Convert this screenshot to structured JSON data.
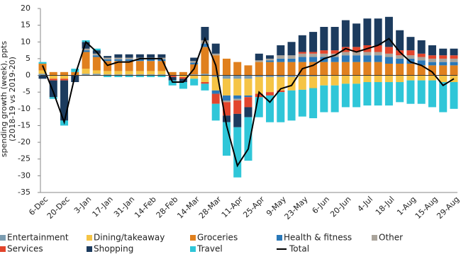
{
  "chart_data": {
    "type": "stacked-bar-line",
    "y_label": [
      "spending growth (week), ppts",
      "(2018-19 vs 2019-20)"
    ],
    "categories": [
      "6-Dec",
      null,
      "20-Dec",
      null,
      "3-Jan",
      null,
      "17-Jan",
      null,
      "31-Jan",
      null,
      "14-Feb",
      null,
      "28-Feb",
      null,
      "14-Mar",
      null,
      "28-Mar",
      null,
      "11-Apr",
      null,
      "25-Apr",
      null,
      "9-May",
      null,
      "23-May",
      null,
      "6-Jun",
      null,
      "20-Jun",
      null,
      "4-Jul",
      null,
      "18-Jul",
      null,
      "1-Aug",
      null,
      "15-Aug",
      null,
      "29-Aug"
    ],
    "ylim": [
      -35,
      20
    ],
    "yticks": [
      -35,
      -30,
      -25,
      -20,
      -15,
      -10,
      -5,
      0,
      5,
      10,
      15,
      20
    ],
    "series": [
      {
        "name": "Entertainment",
        "color": "#7b9cb0",
        "values": [
          0.5,
          0,
          0,
          0,
          0.5,
          0.5,
          0.3,
          0.3,
          0.3,
          0.3,
          0.3,
          0.3,
          0,
          0,
          0.3,
          0.5,
          -0.5,
          -1,
          -1,
          -1,
          -0.5,
          -0.5,
          -0.5,
          -0.5,
          -0.3,
          -0.3,
          0,
          0,
          0,
          0,
          0,
          0,
          0,
          0,
          0,
          0,
          0,
          0,
          0
        ]
      },
      {
        "name": "Dining/takeaway",
        "color": "#f5c445",
        "values": [
          1,
          -1,
          -1,
          0,
          1.5,
          1,
          1,
          1,
          1,
          1,
          1,
          1,
          0,
          -0.5,
          -1,
          -2,
          -4,
          -5,
          -5,
          -5,
          -5,
          -4.5,
          -4,
          -4,
          -4,
          -3.5,
          -3,
          -3,
          -2.5,
          -2.5,
          -2,
          -2,
          -2,
          -2,
          -1.5,
          -1.5,
          -1.5,
          -2,
          -2
        ]
      },
      {
        "name": "Groceries",
        "color": "#e0801e",
        "values": [
          2,
          1,
          1,
          1,
          5,
          4,
          3,
          3,
          3,
          3,
          3,
          3,
          1,
          1,
          3,
          8,
          6,
          5,
          4,
          3,
          4,
          4,
          4,
          4,
          4,
          4,
          4,
          4,
          4,
          4,
          4,
          4,
          3.5,
          3.5,
          3.5,
          3,
          3,
          3,
          3
        ]
      },
      {
        "name": "Health & fitness",
        "color": "#2a78b8",
        "values": [
          0,
          0,
          0,
          0,
          0.5,
          0.5,
          0.5,
          0.5,
          0.5,
          0.5,
          0.5,
          0.5,
          0,
          0,
          0.5,
          1,
          -1,
          -1.5,
          -1,
          -0.5,
          0,
          0.5,
          1,
          1,
          1.5,
          1.5,
          1.5,
          1.5,
          2,
          2,
          2,
          2,
          2,
          1.5,
          1.5,
          1.5,
          1,
          1,
          1
        ]
      },
      {
        "name": "Other",
        "color": "#aaa49b",
        "values": [
          0,
          0,
          0,
          0,
          0.5,
          0.5,
          0.5,
          0.5,
          0.5,
          0.5,
          0.5,
          0.5,
          0,
          0,
          0.5,
          1,
          0.5,
          -0.5,
          -0.5,
          0,
          0.5,
          0.5,
          1,
          1,
          1,
          1,
          1,
          1,
          1,
          1,
          1,
          1,
          1,
          1,
          1,
          1,
          1,
          1,
          1
        ]
      },
      {
        "name": "Services",
        "color": "#e2452c",
        "values": [
          0,
          -0.5,
          -0.5,
          0,
          0,
          0,
          0,
          0,
          0,
          0,
          0,
          0,
          -0.5,
          -0.5,
          0,
          -0.5,
          -3,
          -4,
          -4,
          -3,
          -1,
          -1,
          -0.5,
          0,
          0.5,
          0.5,
          1,
          1,
          1.5,
          1.5,
          2,
          2,
          2,
          1.5,
          1.5,
          1,
          1,
          1,
          1
        ]
      },
      {
        "name": "Shopping",
        "color": "#1c3b5e",
        "values": [
          -1,
          -5,
          -12,
          -2,
          2,
          1,
          0.5,
          1,
          1,
          1,
          1,
          1,
          -1,
          -1,
          1,
          4,
          3,
          -2,
          -4,
          -3,
          2,
          1,
          3,
          4,
          5,
          6,
          7,
          7,
          8,
          7,
          8,
          8,
          9,
          6,
          4,
          4,
          3,
          2,
          2
        ]
      },
      {
        "name": "Travel",
        "color": "#2fc6d8",
        "values": [
          0.5,
          -0.5,
          -1.5,
          1,
          0.5,
          0.5,
          -0.5,
          -0.5,
          -0.5,
          -0.5,
          -0.5,
          -0.5,
          -1.5,
          -2,
          -2,
          -2,
          -5,
          -10,
          -15,
          -13,
          -6,
          -8,
          -9,
          -9,
          -8,
          -9,
          -8,
          -8,
          -7,
          -7,
          -7,
          -7,
          -7,
          -6,
          -7,
          -7,
          -8,
          -9,
          -8
        ]
      },
      {
        "name": "Total",
        "color": "#000000",
        "line": true,
        "values": [
          3,
          -5,
          -14,
          0,
          10,
          7,
          3,
          4,
          4,
          5,
          5,
          5,
          -2,
          -2,
          2,
          11,
          3,
          -15,
          -27,
          -22,
          -5,
          -8,
          -4,
          -3,
          2,
          3,
          5,
          6,
          8,
          7,
          8,
          9,
          11,
          7,
          4,
          3,
          1,
          -3,
          -1
        ]
      }
    ]
  }
}
